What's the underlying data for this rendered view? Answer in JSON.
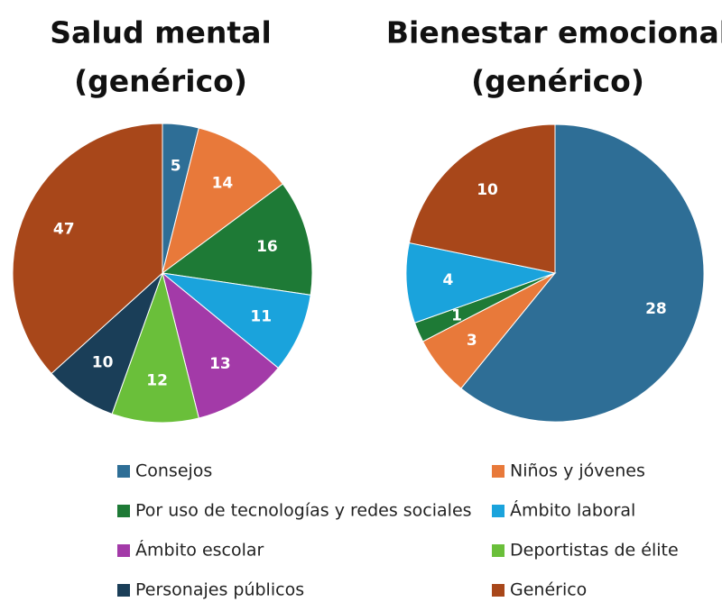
{
  "chart_data": [
    {
      "type": "pie",
      "title": [
        "Salud mental",
        "(genérico)"
      ],
      "categories": [
        "Consejos",
        "Niños y jóvenes",
        "Por uso de tecnologías y redes sociales",
        "Ámbito laboral",
        "Ámbito escolar",
        "Deportistas de élite",
        "Personajes públicos",
        "Genérico"
      ],
      "values": [
        5,
        14,
        16,
        11,
        13,
        12,
        10,
        47
      ],
      "colors": [
        "#2e6e96",
        "#e8793a",
        "#1e7a36",
        "#1aa3dc",
        "#a33aa8",
        "#6abf3a",
        "#1a3e58",
        "#a8471a"
      ],
      "legend": "bottom"
    },
    {
      "type": "pie",
      "title": [
        "Bienestar emocional",
        "(genérico)"
      ],
      "categories": [
        "Consejos",
        "Niños y jóvenes",
        "Por uso de tecnologías y redes sociales",
        "Ámbito laboral",
        "Genérico"
      ],
      "values": [
        28,
        3,
        1,
        4,
        10
      ],
      "colors": [
        "#2e6e96",
        "#e8793a",
        "#1e7a36",
        "#1aa3dc",
        "#a8471a"
      ]
    }
  ]
}
